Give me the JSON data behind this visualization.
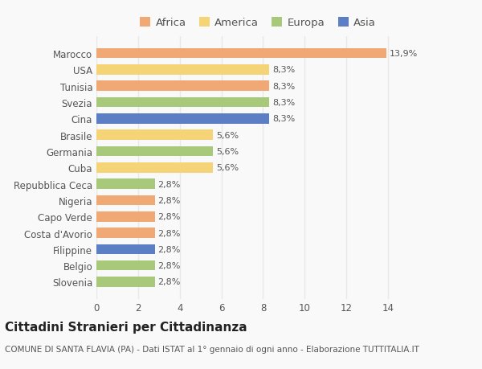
{
  "categories": [
    "Slovenia",
    "Belgio",
    "Filippine",
    "Costa d'Avorio",
    "Capo Verde",
    "Nigeria",
    "Repubblica Ceca",
    "Cuba",
    "Germania",
    "Brasile",
    "Cina",
    "Svezia",
    "Tunisia",
    "USA",
    "Marocco"
  ],
  "values": [
    2.8,
    2.8,
    2.8,
    2.8,
    2.8,
    2.8,
    2.8,
    5.6,
    5.6,
    5.6,
    8.3,
    8.3,
    8.3,
    8.3,
    13.9
  ],
  "labels": [
    "2,8%",
    "2,8%",
    "2,8%",
    "2,8%",
    "2,8%",
    "2,8%",
    "2,8%",
    "5,6%",
    "5,6%",
    "5,6%",
    "8,3%",
    "8,3%",
    "8,3%",
    "8,3%",
    "13,9%"
  ],
  "colors": [
    "#a8c87a",
    "#a8c87a",
    "#5b7ec4",
    "#f0a875",
    "#f0a875",
    "#f0a875",
    "#a8c87a",
    "#f5d478",
    "#a8c87a",
    "#f5d478",
    "#5b7ec4",
    "#a8c87a",
    "#f0a875",
    "#f5d478",
    "#f0a875"
  ],
  "legend_labels": [
    "Africa",
    "America",
    "Europa",
    "Asia"
  ],
  "legend_colors": [
    "#f0a875",
    "#f5d478",
    "#a8c87a",
    "#5b7ec4"
  ],
  "title": "Cittadini Stranieri per Cittadinanza",
  "subtitle": "COMUNE DI SANTA FLAVIA (PA) - Dati ISTAT al 1° gennaio di ogni anno - Elaborazione TUTTITALIA.IT",
  "xlim": [
    0,
    15.5
  ],
  "xticks": [
    0,
    2,
    4,
    6,
    8,
    10,
    12,
    14
  ],
  "background_color": "#f9f9f9",
  "grid_color": "#e8e8e8",
  "bar_height": 0.62,
  "title_fontsize": 11,
  "subtitle_fontsize": 7.5,
  "tick_fontsize": 8.5,
  "label_fontsize": 8.0,
  "legend_fontsize": 9.5
}
